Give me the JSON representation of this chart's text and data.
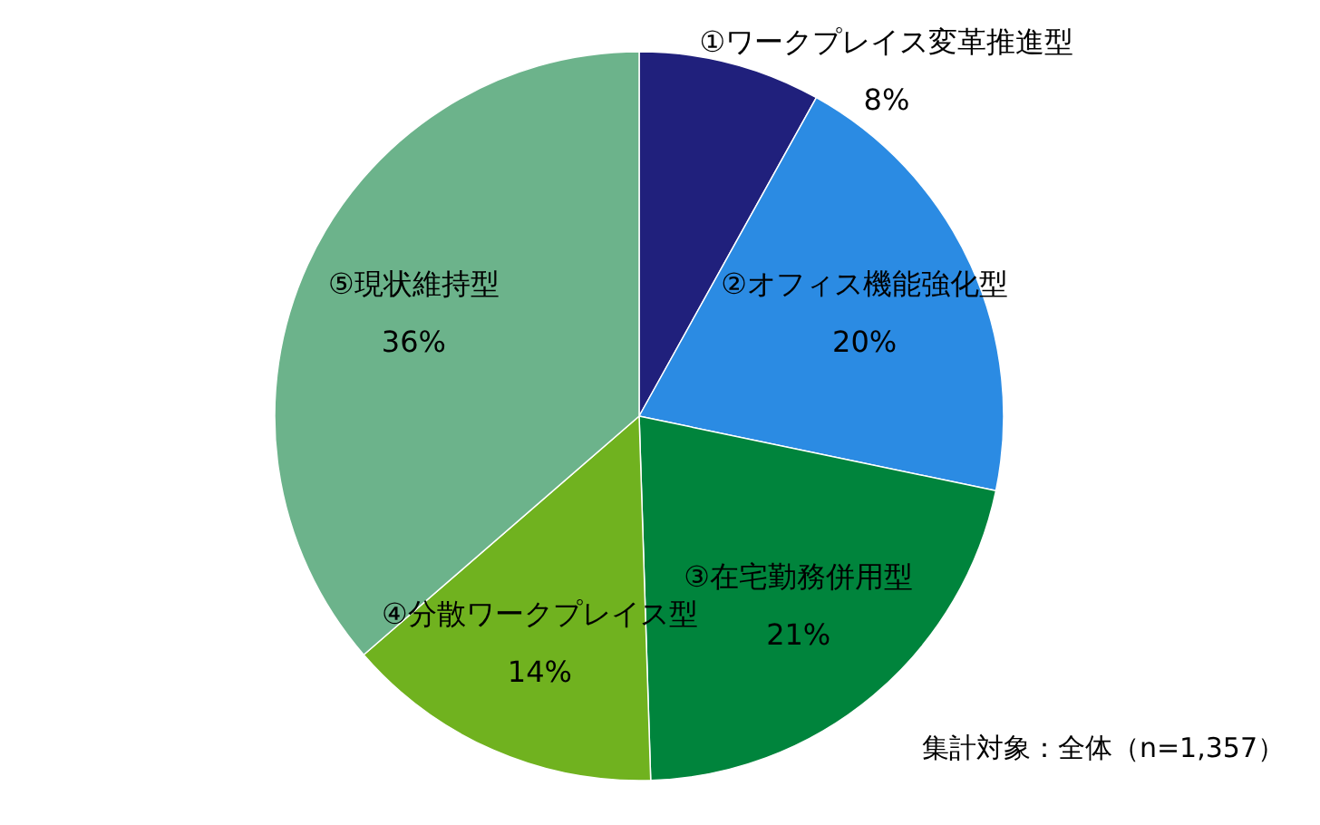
{
  "chart_data": {
    "type": "pie",
    "categories": [
      "①ワークプレイス変革推進型",
      "②オフィス機能強化型",
      "③在宅勤務併用型",
      "④分散ワークプレイス型",
      "⑤現状維持型"
    ],
    "values": [
      8,
      20,
      21,
      14,
      36
    ],
    "value_labels": [
      "8%",
      "20%",
      "21%",
      "14%",
      "36%"
    ],
    "colors": [
      "#20207c",
      "#2b8be3",
      "#00843c",
      "#70b21f",
      "#6cb38b"
    ],
    "annotations": [
      "集計対象：全体（n=1,357）"
    ]
  }
}
